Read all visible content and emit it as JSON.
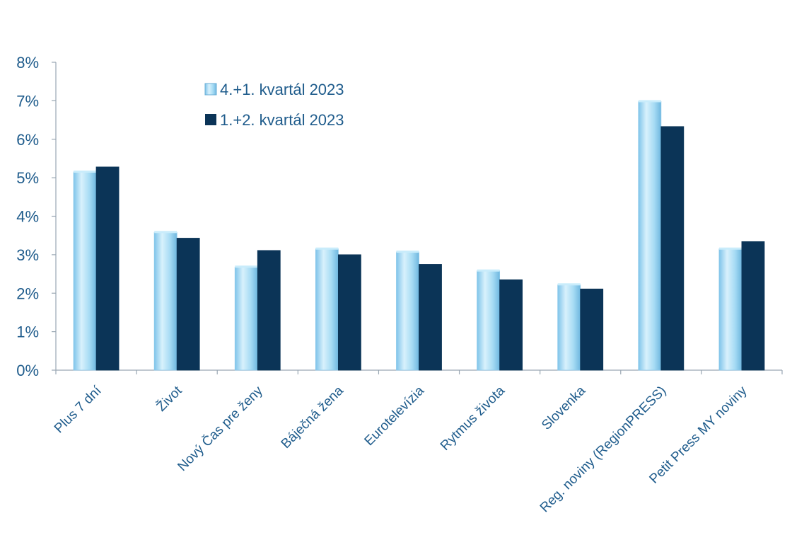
{
  "chart_data": {
    "type": "bar",
    "categories": [
      "Plus 7 dní",
      "Život",
      "Nový Čas pre ženy",
      "Báječná žena",
      "Eurotelevízia",
      "Rytmus života",
      "Slovenka",
      "Reg. noviny (RegionPRESS)",
      "Petit Press MY noviny"
    ],
    "series": [
      {
        "name": "4.+1. kvartál 2023",
        "values": [
          5.15,
          3.58,
          2.68,
          3.15,
          3.07,
          2.58,
          2.22,
          6.98,
          3.15
        ],
        "color": "#a8dcf5"
      },
      {
        "name": "1.+2. kvartál 2023",
        "values": [
          5.28,
          3.43,
          3.11,
          3.0,
          2.75,
          2.35,
          2.11,
          6.33,
          3.34
        ],
        "color": "#0b3457"
      }
    ],
    "y_ticks": [
      "0%",
      "1%",
      "2%",
      "3%",
      "4%",
      "5%",
      "6%",
      "7%",
      "8%"
    ],
    "ylim": [
      0,
      8
    ],
    "grid": false,
    "legend_position": "top-left",
    "title": "",
    "xlabel": "",
    "ylabel": ""
  }
}
